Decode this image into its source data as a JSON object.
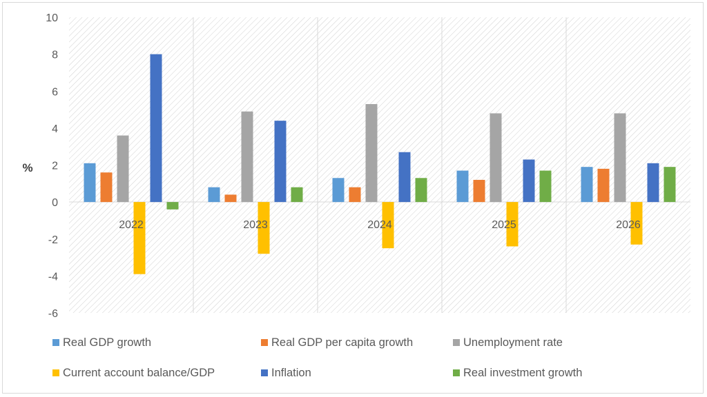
{
  "chart_data": {
    "type": "bar",
    "title": "",
    "xlabel": "",
    "ylabel": "%",
    "ylim": [
      -6,
      10
    ],
    "yticks": [
      10,
      8,
      6,
      4,
      2,
      0,
      -2,
      -4,
      -6
    ],
    "categories": [
      "2022",
      "2023",
      "2024",
      "2025",
      "2026"
    ],
    "series": [
      {
        "name": "Real GDP growth",
        "color": "#5b9bd5",
        "values": [
          2.1,
          0.8,
          1.3,
          1.7,
          1.9
        ]
      },
      {
        "name": "Real GDP per capita growth",
        "color": "#ed7d31",
        "values": [
          1.6,
          0.4,
          0.8,
          1.2,
          1.8
        ]
      },
      {
        "name": "Unemployment rate",
        "color": "#a5a5a5",
        "values": [
          3.6,
          4.9,
          5.3,
          4.8,
          4.8
        ]
      },
      {
        "name": "Current account balance/GDP",
        "color": "#ffc000",
        "values": [
          -3.9,
          -2.8,
          -2.5,
          -2.4,
          -2.3
        ]
      },
      {
        "name": "Inflation",
        "color": "#4472c4",
        "values": [
          8.0,
          4.4,
          2.7,
          2.3,
          2.1
        ]
      },
      {
        "name": "Real investment growth",
        "color": "#70ad47",
        "values": [
          -0.4,
          0.8,
          1.3,
          1.7,
          1.9
        ]
      }
    ],
    "grid": false,
    "background": "diagonal-hatch",
    "legend_position": "bottom"
  }
}
